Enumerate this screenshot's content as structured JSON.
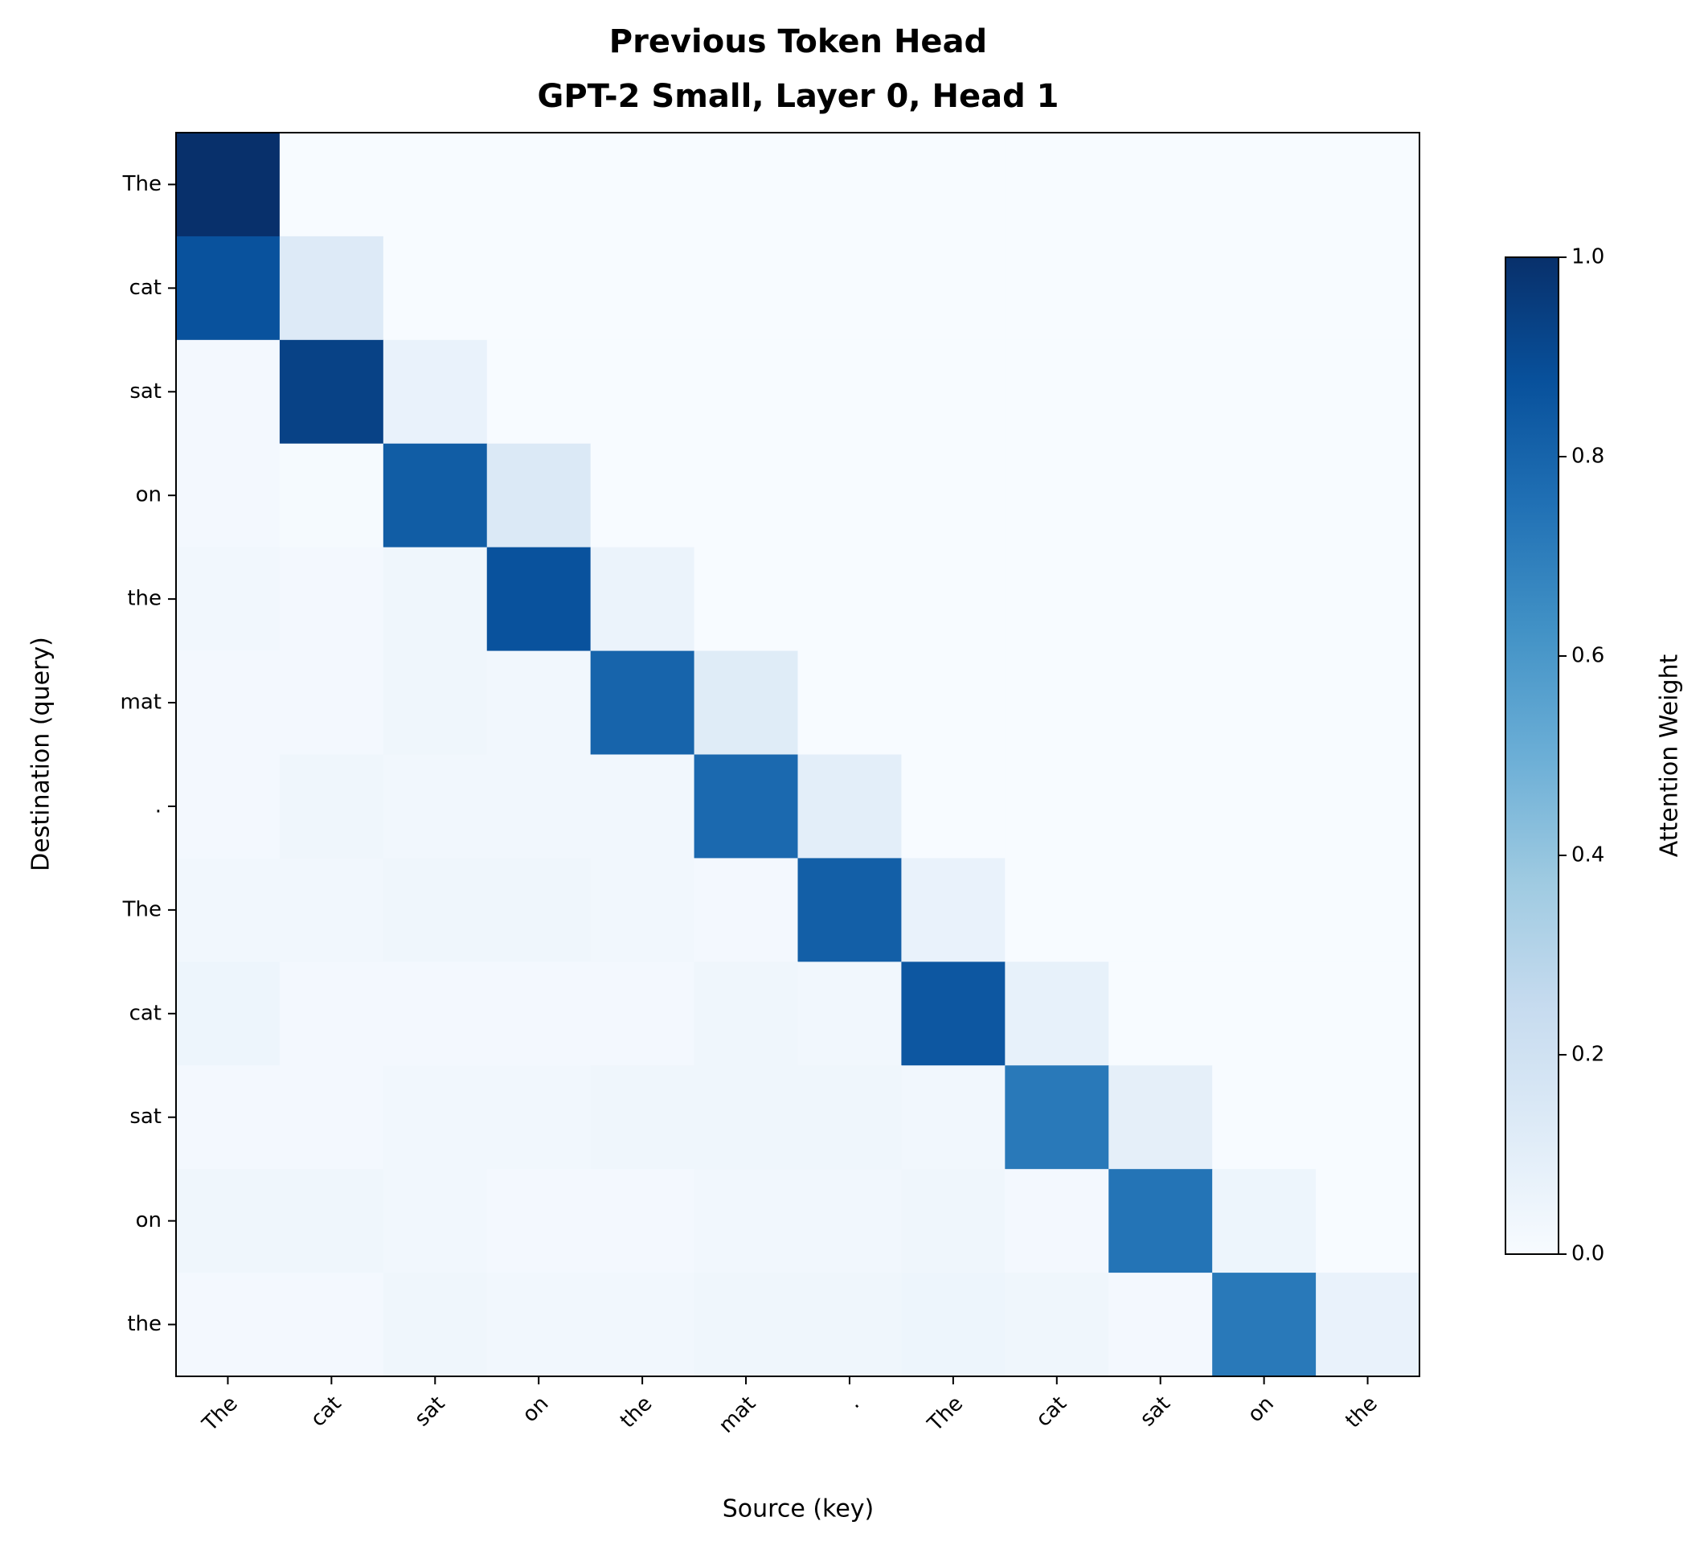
{
  "chart_data": {
    "type": "heatmap",
    "title": [
      "Previous Token Head",
      "GPT-2 Small, Layer 0, Head 1"
    ],
    "x_label": "Source (key)",
    "y_label": "Destination (query)",
    "x_categories": [
      "The",
      "cat",
      "sat",
      "on",
      "the",
      "mat",
      ".",
      "The",
      "cat",
      "sat",
      "on",
      "the"
    ],
    "y_categories": [
      "The",
      "cat",
      "sat",
      "on",
      "the",
      "mat",
      ".",
      "The",
      "cat",
      "sat",
      "on",
      "the"
    ],
    "cmap": "Blues",
    "values": [
      [
        1.0,
        0,
        0,
        0,
        0,
        0,
        0,
        0,
        0,
        0,
        0,
        0
      ],
      [
        0.87,
        0.13,
        0,
        0,
        0,
        0,
        0,
        0,
        0,
        0,
        0,
        0
      ],
      [
        0.02,
        0.93,
        0.07,
        0,
        0,
        0,
        0,
        0,
        0,
        0,
        0,
        0
      ],
      [
        0.02,
        0.01,
        0.83,
        0.14,
        0,
        0,
        0,
        0,
        0,
        0,
        0,
        0
      ],
      [
        0.03,
        0.02,
        0.04,
        0.87,
        0.06,
        0,
        0,
        0,
        0,
        0,
        0,
        0
      ],
      [
        0.02,
        0.02,
        0.04,
        0.03,
        0.8,
        0.12,
        0,
        0,
        0,
        0,
        0,
        0
      ],
      [
        0.02,
        0.04,
        0.03,
        0.03,
        0.03,
        0.78,
        0.1,
        0,
        0,
        0,
        0,
        0
      ],
      [
        0.03,
        0.03,
        0.04,
        0.04,
        0.03,
        0.02,
        0.82,
        0.07,
        0,
        0,
        0,
        0
      ],
      [
        0.05,
        0.02,
        0.02,
        0.02,
        0.02,
        0.04,
        0.03,
        0.85,
        0.08,
        0,
        0,
        0
      ],
      [
        0.02,
        0.02,
        0.03,
        0.03,
        0.04,
        0.04,
        0.04,
        0.03,
        0.72,
        0.09,
        0,
        0
      ],
      [
        0.04,
        0.04,
        0.03,
        0.02,
        0.02,
        0.03,
        0.03,
        0.04,
        0.02,
        0.74,
        0.05,
        0
      ],
      [
        0.02,
        0.02,
        0.04,
        0.03,
        0.03,
        0.04,
        0.04,
        0.05,
        0.04,
        0.02,
        0.72,
        0.07
      ]
    ],
    "colorbar": {
      "label": "Attention Weight",
      "lim": [
        0,
        1
      ],
      "ticks": [
        {
          "value": 0,
          "label": "0.0"
        },
        {
          "value": 0.2,
          "label": "0.2"
        },
        {
          "value": 0.4,
          "label": "0.4"
        },
        {
          "value": 0.6,
          "label": "0.6"
        },
        {
          "value": 0.8,
          "label": "0.8"
        },
        {
          "value": 1,
          "label": "1.0"
        }
      ]
    }
  }
}
